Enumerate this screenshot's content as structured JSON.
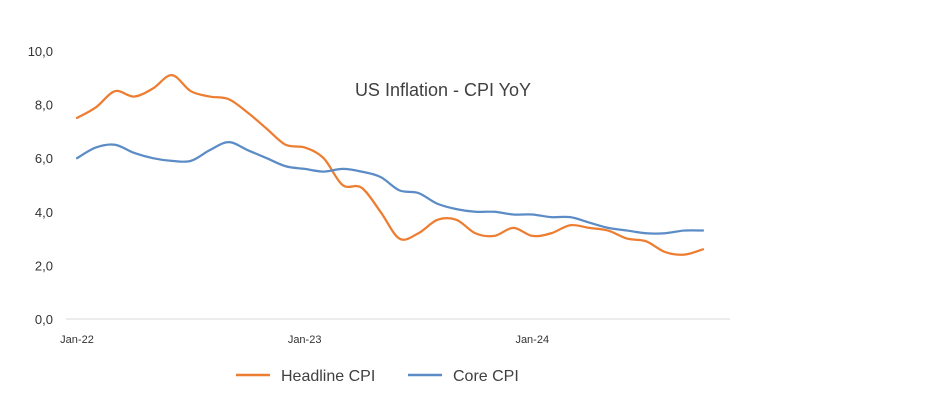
{
  "chart_data": {
    "type": "line",
    "title": "US Inflation - CPI YoY",
    "xlabel": "",
    "ylabel": "",
    "ylim": [
      0,
      10
    ],
    "y_ticks": [
      "0,0",
      "2,0",
      "4,0",
      "6,0",
      "8,0",
      "10,0"
    ],
    "x_ticks": [
      "Jan-22",
      "Jan-23",
      "Jan-24"
    ],
    "grid": false,
    "legend_position": "bottom",
    "x": [
      "Jan-22",
      "Feb-22",
      "Mar-22",
      "Apr-22",
      "May-22",
      "Jun-22",
      "Jul-22",
      "Aug-22",
      "Sep-22",
      "Oct-22",
      "Nov-22",
      "Dec-22",
      "Jan-23",
      "Feb-23",
      "Mar-23",
      "Apr-23",
      "May-23",
      "Jun-23",
      "Jul-23",
      "Aug-23",
      "Sep-23",
      "Oct-23",
      "Nov-23",
      "Dec-23",
      "Jan-24",
      "Feb-24",
      "Mar-24",
      "Apr-24",
      "May-24",
      "Jun-24",
      "Jul-24",
      "Aug-24",
      "Sep-24",
      "Oct-24"
    ],
    "series": [
      {
        "name": "Headline CPI",
        "color": "#ED7D31",
        "values": [
          7.5,
          7.9,
          8.5,
          8.3,
          8.6,
          9.1,
          8.5,
          8.3,
          8.2,
          7.7,
          7.1,
          6.5,
          6.4,
          6.0,
          5.0,
          4.9,
          4.0,
          3.0,
          3.2,
          3.7,
          3.7,
          3.2,
          3.1,
          3.4,
          3.1,
          3.2,
          3.5,
          3.4,
          3.3,
          3.0,
          2.9,
          2.5,
          2.4,
          2.6
        ]
      },
      {
        "name": "Core CPI",
        "color": "#5B8CC6",
        "values": [
          6.0,
          6.4,
          6.5,
          6.2,
          6.0,
          5.9,
          5.9,
          6.3,
          6.6,
          6.3,
          6.0,
          5.7,
          5.6,
          5.5,
          5.6,
          5.5,
          5.3,
          4.8,
          4.7,
          4.3,
          4.1,
          4.0,
          4.0,
          3.9,
          3.9,
          3.8,
          3.8,
          3.6,
          3.4,
          3.3,
          3.2,
          3.2,
          3.3,
          3.3
        ]
      }
    ]
  }
}
